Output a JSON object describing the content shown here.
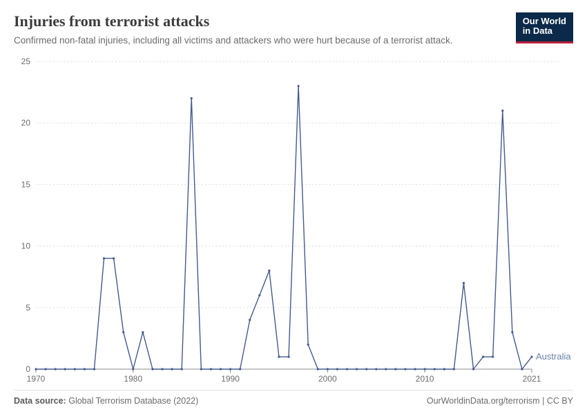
{
  "header": {
    "title": "Injuries from terrorist attacks",
    "title_fontsize": 22,
    "title_color": "#3b3b3b",
    "subtitle": "Confirmed non-fatal injuries, including all victims and attackers who were hurt because of a terrorist attack.",
    "subtitle_fontsize": 13.5,
    "subtitle_color": "#6b6b6b",
    "logo_line1": "Our World",
    "logo_line2": "in Data",
    "logo_bg": "#0b2a4a",
    "logo_accent": "#b9203b"
  },
  "chart": {
    "type": "line",
    "series_label": "Australia",
    "series_label_color": "#6a7fa8",
    "line_color": "#435a8f",
    "line_width": 1.4,
    "marker_radius": 1.6,
    "marker_color": "#435a8f",
    "background_color": "#ffffff",
    "grid_color": "#dddddd",
    "grid_dash": "2,3",
    "axis_line_color": "#8a8a8a",
    "tick_label_color": "#6b6b6b",
    "tick_fontsize": 12,
    "xlim": [
      1970,
      2021
    ],
    "ylim": [
      0,
      25
    ],
    "yticks": [
      0,
      5,
      10,
      15,
      20,
      25
    ],
    "xticks": [
      1970,
      1980,
      1990,
      2000,
      2010,
      2021
    ],
    "years": [
      1970,
      1971,
      1972,
      1973,
      1974,
      1975,
      1976,
      1977,
      1978,
      1979,
      1980,
      1981,
      1982,
      1983,
      1984,
      1985,
      1986,
      1987,
      1988,
      1989,
      1990,
      1991,
      1992,
      1993,
      1994,
      1995,
      1996,
      1997,
      1998,
      1999,
      2000,
      2001,
      2002,
      2003,
      2004,
      2005,
      2006,
      2007,
      2008,
      2009,
      2010,
      2011,
      2012,
      2013,
      2014,
      2015,
      2016,
      2017,
      2018,
      2019,
      2020,
      2021
    ],
    "values": [
      0,
      0,
      0,
      0,
      0,
      0,
      0,
      9,
      9,
      3,
      0,
      3,
      0,
      0,
      0,
      0,
      22,
      0,
      0,
      0,
      0,
      0,
      4,
      6,
      8,
      1,
      1,
      23,
      2,
      0,
      0,
      0,
      0,
      0,
      0,
      0,
      0,
      0,
      0,
      0,
      0,
      0,
      0,
      0,
      7,
      0,
      1,
      1,
      21,
      3,
      0,
      1
    ]
  },
  "footer": {
    "source_label": "Data source:",
    "source_value": "Global Terrorism Database (2022)",
    "credit": "OurWorldinData.org/terrorism",
    "license": "CC BY"
  }
}
